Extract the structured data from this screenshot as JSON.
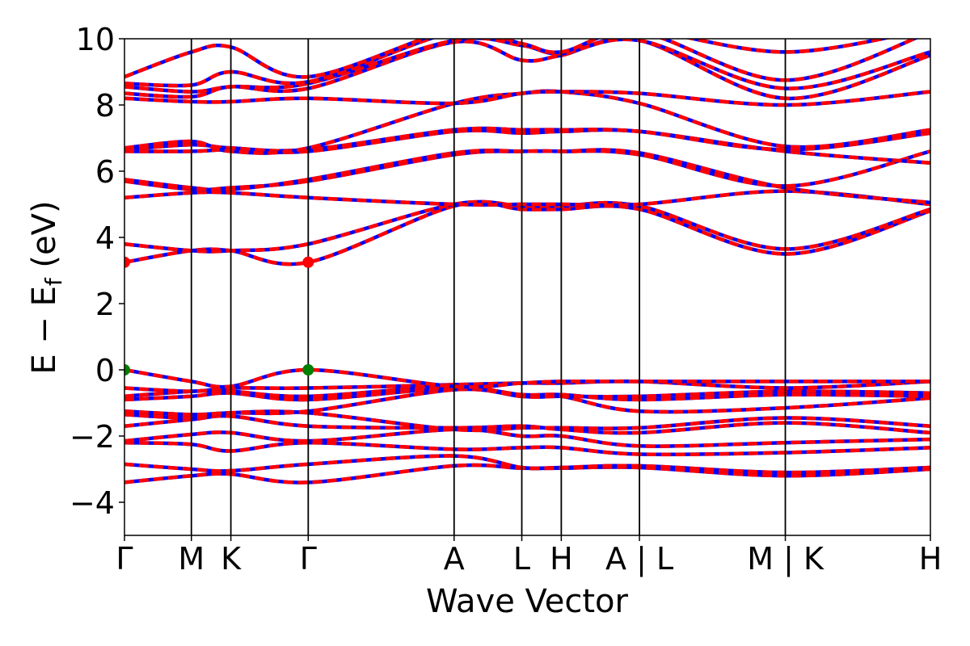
{
  "chart_data": {
    "type": "line",
    "xlabel": "Wave Vector",
    "ylabel_main": "E − E",
    "ylabel_sub": "f",
    "ylabel_unit": " (eV)",
    "ylim": [
      -5,
      10
    ],
    "yticks": [
      -4,
      -2,
      0,
      2,
      4,
      6,
      8,
      10
    ],
    "ytick_labels": [
      "−4",
      "−2",
      "0",
      "2",
      "4",
      "6",
      "8",
      "10"
    ],
    "xlim": [
      0,
      1
    ],
    "kpoints": [
      {
        "label": "Γ",
        "x": 0.0
      },
      {
        "label": "M",
        "x": 0.083
      },
      {
        "label": "K",
        "x": 0.132
      },
      {
        "label": "Γ",
        "x": 0.228
      },
      {
        "label": "A",
        "x": 0.409
      },
      {
        "label": "L",
        "x": 0.493
      },
      {
        "label": "H",
        "x": 0.542
      },
      {
        "label": "A | L",
        "x": 0.639
      },
      {
        "label": "M | K",
        "x": 0.82
      },
      {
        "label": "H",
        "x": 1.0
      }
    ],
    "colors": {
      "series_a": "#ff0000",
      "series_b": "#0000ff",
      "vbm_marker": "#007f00",
      "cbm_marker": "#ff0000"
    },
    "markers": [
      {
        "kind": "cbm",
        "x": 0.0,
        "y": 3.25
      },
      {
        "kind": "cbm",
        "x": 0.228,
        "y": 3.25
      },
      {
        "kind": "vbm",
        "x": 0.0,
        "y": 0.0
      },
      {
        "kind": "vbm",
        "x": 0.228,
        "y": 0.0
      }
    ],
    "bands": [
      [
        -3.4,
        -3.2,
        -3.15,
        -3.4,
        -2.9,
        -2.97,
        -2.97,
        -2.95,
        -3.2,
        -3.0
      ],
      [
        -2.85,
        -3.0,
        -3.05,
        -2.85,
        -2.6,
        -2.95,
        -2.95,
        -2.9,
        -3.1,
        -2.95
      ],
      [
        -2.2,
        -2.25,
        -2.45,
        -2.2,
        -2.4,
        -2.35,
        -2.35,
        -2.55,
        -2.5,
        -2.35
      ],
      [
        -2.15,
        -1.95,
        -1.9,
        -2.15,
        -1.8,
        -2.0,
        -2.0,
        -2.3,
        -2.2,
        -2.1
      ],
      [
        -1.7,
        -1.5,
        -1.4,
        -1.7,
        -1.75,
        -1.7,
        -1.8,
        -1.9,
        -1.6,
        -1.9
      ],
      [
        -1.35,
        -1.45,
        -1.3,
        -1.3,
        -1.8,
        -1.75,
        -1.75,
        -1.75,
        -1.45,
        -1.7
      ],
      [
        -1.25,
        -1.35,
        -1.3,
        -1.25,
        -0.6,
        -0.8,
        -0.8,
        -1.25,
        -1.15,
        -0.85
      ],
      [
        -0.9,
        -0.8,
        -0.7,
        -0.9,
        -0.55,
        -0.75,
        -0.75,
        -0.9,
        -0.75,
        -0.8
      ],
      [
        -0.8,
        -0.65,
        -0.65,
        -0.8,
        -0.5,
        -0.8,
        -0.8,
        -0.8,
        -0.65,
        -0.7
      ],
      [
        -0.55,
        -0.65,
        -0.55,
        -0.55,
        -0.45,
        -0.4,
        -0.4,
        -0.35,
        -0.55,
        -0.35
      ],
      [
        0.0,
        -0.35,
        -0.5,
        0.0,
        -0.5,
        -0.4,
        -0.35,
        -0.35,
        -0.35,
        -0.35
      ],
      [
        3.25,
        3.6,
        3.6,
        3.25,
        4.95,
        4.85,
        4.85,
        4.85,
        3.5,
        4.8
      ],
      [
        3.8,
        3.6,
        3.6,
        3.8,
        5.0,
        4.95,
        4.95,
        4.95,
        3.65,
        4.85
      ],
      [
        5.2,
        5.35,
        5.35,
        5.2,
        5.0,
        5.0,
        5.0,
        5.0,
        5.4,
        5.0
      ],
      [
        5.7,
        5.45,
        5.5,
        5.7,
        6.5,
        6.6,
        6.6,
        6.55,
        5.5,
        5.05
      ],
      [
        5.75,
        5.5,
        5.45,
        5.75,
        6.55,
        6.6,
        6.6,
        6.5,
        5.55,
        6.6
      ],
      [
        6.6,
        6.6,
        6.65,
        6.6,
        7.2,
        7.15,
        7.2,
        7.2,
        6.6,
        6.25
      ],
      [
        6.65,
        6.8,
        6.7,
        6.65,
        7.25,
        7.25,
        7.25,
        7.2,
        6.65,
        7.15
      ],
      [
        6.7,
        6.9,
        6.6,
        6.7,
        8.05,
        8.35,
        8.4,
        8.05,
        6.75,
        7.25
      ],
      [
        8.2,
        8.1,
        8.1,
        8.2,
        8.05,
        8.35,
        8.4,
        8.35,
        8.0,
        8.4
      ],
      [
        8.35,
        8.25,
        8.55,
        8.5,
        9.9,
        9.35,
        9.5,
        9.95,
        8.2,
        9.5
      ],
      [
        8.55,
        8.4,
        8.55,
        8.65,
        9.95,
        9.8,
        9.55,
        9.95,
        8.5,
        9.6
      ],
      [
        8.65,
        8.6,
        9.0,
        8.7,
        10.2,
        9.85,
        9.6,
        10.2,
        8.75,
        10.2
      ],
      [
        8.85,
        9.6,
        9.75,
        8.85,
        10.3,
        10.3,
        10.3,
        10.3,
        9.6,
        10.3
      ]
    ]
  }
}
